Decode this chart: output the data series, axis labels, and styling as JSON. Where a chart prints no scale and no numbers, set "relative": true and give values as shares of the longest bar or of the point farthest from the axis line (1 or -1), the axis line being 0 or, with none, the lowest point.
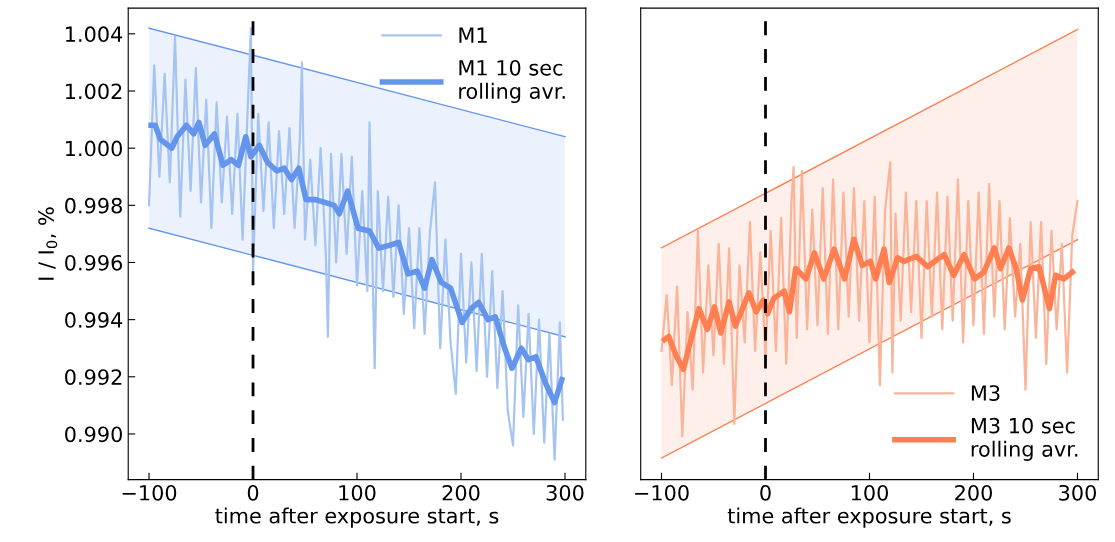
{
  "chart_data": [
    {
      "type": "line",
      "xlabel": "time after exposure start, s",
      "ylabel": "I / I$_{0}$, %",
      "xlim": [
        -120,
        320
      ],
      "xticks": [
        {
          "value": -100,
          "label": "−100"
        },
        0,
        100,
        200,
        300
      ],
      "ylim": [
        0.9884,
        1.0049
      ],
      "yticks": [
        {
          "value": 1.004,
          "label": "1.004"
        },
        {
          "value": 1.002,
          "label": "1.002"
        },
        {
          "value": 1.0,
          "label": "1.000"
        },
        {
          "value": 0.998,
          "label": "0.998"
        },
        {
          "value": 0.996,
          "label": "0.996"
        },
        {
          "value": 0.994,
          "label": "0.994"
        },
        {
          "value": 0.992,
          "label": "0.992"
        },
        {
          "value": 0.99,
          "label": "0.990"
        }
      ],
      "legend": "top right",
      "grid": false,
      "ref_lines": [
        {
          "axis": "x",
          "value": 0,
          "color": "#000000",
          "line_style": "dashed"
        }
      ],
      "series": [
        {
          "x": [
            -100,
            300
          ],
          "values": [
            null,
            null
          ],
          "lower": [
            0.9972,
            0.9934
          ],
          "upper": [
            1.0042,
            1.0004
          ],
          "color": "#6495ed"
        },
        {
          "x": [
            -100,
            300
          ],
          "values": [
            1.0042,
            1.0004
          ],
          "color": "#6495ed"
        },
        {
          "x": [
            -100,
            300
          ],
          "values": [
            0.9972,
            0.9934
          ],
          "color": "#6495ed"
        },
        {
          "name": "M1",
          "color": "#a6c4f2",
          "x": [
            -100,
            -95,
            -90,
            -85,
            -80,
            -75,
            -70,
            -65,
            -60,
            -55,
            -50,
            -45,
            -40,
            -35,
            -30,
            -25,
            -20,
            -15,
            -10,
            -5,
            -2,
            0,
            5,
            10,
            15,
            20,
            25,
            30,
            35,
            40,
            45,
            47,
            50,
            55,
            60,
            65,
            70,
            72,
            75,
            80,
            85,
            90,
            95,
            100,
            105,
            110,
            112,
            117,
            120,
            125,
            130,
            135,
            140,
            145,
            150,
            155,
            160,
            165,
            170,
            175,
            180,
            185,
            190,
            195,
            200,
            205,
            210,
            215,
            220,
            225,
            230,
            235,
            240,
            245,
            250,
            255,
            260,
            265,
            270,
            275,
            280,
            285,
            290,
            295,
            298
          ],
          "values": [
            0.998,
            1.0029,
            0.999,
            1.0026,
            0.9988,
            1.0039,
            0.9976,
            1.0024,
            0.9985,
            1.0028,
            0.9981,
            1.0017,
            0.9972,
            1.0016,
            0.9981,
            1.0011,
            0.9977,
            1.0012,
            0.9968,
            1.0015,
            1.0042,
            0.9957,
            1.0012,
            0.9978,
            1.0009,
            0.9972,
            1.0006,
            0.9977,
            1.0007,
            0.9972,
            1.0003,
            1.003,
            0.9968,
            0.9996,
            0.9966,
            1.0,
            0.9963,
            0.9934,
            0.9998,
            0.996,
            0.9998,
            0.9963,
            0.9997,
            0.9952,
            0.9985,
            0.995,
            1.0009,
            0.9923,
            0.9985,
            0.995,
            0.9983,
            0.9948,
            0.998,
            0.9942,
            0.9972,
            0.9937,
            0.9972,
            0.9935,
            0.997,
            0.9988,
            0.993,
            0.9968,
            0.9932,
            0.9914,
            0.9963,
            0.9925,
            0.996,
            0.9922,
            0.9963,
            0.992,
            0.9957,
            0.9916,
            0.995,
            0.9908,
            0.9896,
            0.9945,
            0.9906,
            0.9942,
            0.99,
            0.994,
            0.9897,
            0.9935,
            0.9891,
            0.9939,
            0.9905
          ]
        },
        {
          "name": "M1 10 sec\nrolling avr.",
          "color": "#6495ed",
          "x": [
            -98,
            -94,
            -89,
            -78,
            -73,
            -64,
            -57,
            -52,
            -46,
            -37,
            -29,
            -21,
            -14,
            -7,
            -2,
            6,
            14,
            23,
            30,
            37,
            44,
            51,
            60,
            69,
            78,
            83,
            91,
            101,
            112,
            121,
            131,
            140,
            149,
            158,
            165,
            172,
            181,
            190,
            201,
            210,
            217,
            226,
            233,
            242,
            249,
            258,
            265,
            272,
            281,
            290,
            297
          ],
          "values": [
            1.0008,
            1.0008,
            1.0003,
            1.0,
            1.0004,
            1.0008,
            1.0005,
            1.0009,
            1.0001,
            1.0005,
            0.9994,
            0.9996,
            0.9994,
            1.0004,
            0.9997,
            1.0001,
            0.9995,
            0.9992,
            0.9993,
            0.9989,
            0.9993,
            0.9982,
            0.9982,
            0.9981,
            0.998,
            0.9977,
            0.9985,
            0.9972,
            0.9971,
            0.9965,
            0.9966,
            0.9967,
            0.9956,
            0.9957,
            0.9951,
            0.9961,
            0.9953,
            0.9951,
            0.9939,
            0.9944,
            0.9946,
            0.994,
            0.9941,
            0.993,
            0.9923,
            0.993,
            0.9926,
            0.9927,
            0.9918,
            0.9911,
            0.9919
          ]
        }
      ]
    },
    {
      "type": "line",
      "xlabel": "time after exposure start, s",
      "xlim": [
        -120,
        320
      ],
      "xticks": [
        {
          "value": -100,
          "label": "−100"
        },
        0,
        100,
        200,
        300
      ],
      "relative": true,
      "tick_labels": "x",
      "legend": "bottom right",
      "grid": false,
      "ref_lines": [
        {
          "axis": "x",
          "value": 0,
          "color": "#000000",
          "line_style": "dashed"
        }
      ],
      "series": [
        {
          "x": [
            -100,
            300
          ],
          "values": [
            null,
            null
          ],
          "lower": [
            0.048,
            0.533
          ],
          "upper": [
            0.515,
            1.0
          ],
          "color": "#ff7f50"
        },
        {
          "x": [
            -100,
            300
          ],
          "values": [
            0.515,
            1.0
          ],
          "color": "#ff7f50"
        },
        {
          "x": [
            -100,
            300
          ],
          "values": [
            0.048,
            0.533
          ],
          "color": "#ff7f50"
        },
        {
          "name": "M3",
          "color": "#f9b49a",
          "x": [
            -100,
            -95,
            -90,
            -85,
            -80,
            -75,
            -70,
            -65,
            -60,
            -55,
            -50,
            -45,
            -40,
            -35,
            -30,
            -25,
            -20,
            -15,
            -10,
            -5,
            0,
            5,
            10,
            15,
            20,
            25,
            27,
            30,
            35,
            40,
            45,
            50,
            55,
            60,
            65,
            70,
            75,
            80,
            85,
            90,
            95,
            100,
            105,
            110,
            115,
            120,
            122,
            125,
            130,
            135,
            140,
            145,
            150,
            155,
            160,
            165,
            170,
            175,
            180,
            185,
            190,
            195,
            200,
            205,
            210,
            215,
            220,
            225,
            230,
            235,
            240,
            245,
            250,
            255,
            260,
            265,
            270,
            275,
            280,
            285,
            290,
            295,
            300
          ],
          "values": [
            0.286,
            0.41,
            0.21,
            0.429,
            0.096,
            0.372,
            0.2,
            0.553,
            0.238,
            0.476,
            0.276,
            0.524,
            0.257,
            0.514,
            0.124,
            0.476,
            0.305,
            0.572,
            0.286,
            0.505,
            0.276,
            0.553,
            0.286,
            0.581,
            0.257,
            0.619,
            0.695,
            0.315,
            0.686,
            0.334,
            0.6,
            0.343,
            0.648,
            0.324,
            0.667,
            0.334,
            0.638,
            0.362,
            0.648,
            0.353,
            0.619,
            0.305,
            0.629,
            0.21,
            0.6,
            0.705,
            0.238,
            0.591,
            0.353,
            0.638,
            0.372,
            0.619,
            0.315,
            0.619,
            0.362,
            0.638,
            0.334,
            0.629,
            0.353,
            0.667,
            0.305,
            0.619,
            0.343,
            0.638,
            0.324,
            0.657,
            0.362,
            0.619,
            0.334,
            0.581,
            0.362,
            0.524,
            0.2,
            0.572,
            0.315,
            0.572,
            0.257,
            0.553,
            0.334,
            0.524,
            0.238,
            0.543,
            0.619
          ]
        },
        {
          "name": "M3 10 sec\nrolling avr.",
          "color": "#ff7f50",
          "x": [
            -97,
            -93,
            -86,
            -79,
            -73,
            -64,
            -56,
            -49,
            -43,
            -35,
            -29,
            -16,
            -9,
            -2,
            2,
            8,
            18,
            23,
            29,
            39,
            47,
            56,
            66,
            76,
            85,
            93,
            101,
            106,
            114,
            119,
            127,
            133,
            145,
            156,
            165,
            172,
            181,
            191,
            201,
            210,
            220,
            226,
            234,
            241,
            247,
            255,
            263,
            273,
            279,
            287,
            295
          ],
          "values": [
            0.311,
            0.318,
            0.276,
            0.245,
            0.299,
            0.38,
            0.334,
            0.384,
            0.326,
            0.395,
            0.341,
            0.415,
            0.373,
            0.399,
            0.369,
            0.403,
            0.419,
            0.373,
            0.469,
            0.446,
            0.504,
            0.446,
            0.512,
            0.446,
            0.534,
            0.476,
            0.485,
            0.446,
            0.512,
            0.438,
            0.493,
            0.485,
            0.496,
            0.473,
            0.489,
            0.5,
            0.454,
            0.5,
            0.446,
            0.461,
            0.515,
            0.469,
            0.515,
            0.469,
            0.399,
            0.469,
            0.473,
            0.38,
            0.454,
            0.446,
            0.461
          ]
        }
      ]
    }
  ]
}
